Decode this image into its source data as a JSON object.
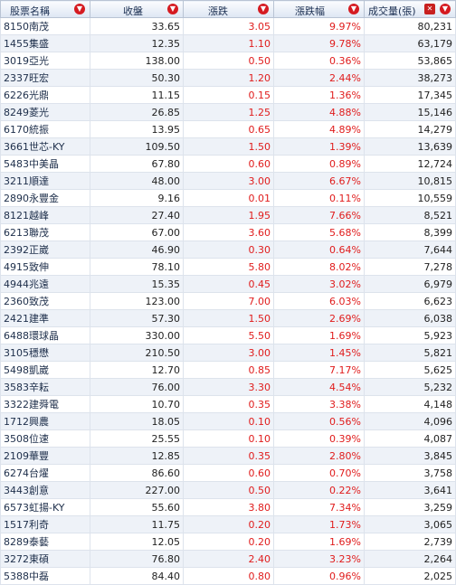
{
  "headers": [
    "股票名稱",
    "收盤",
    "漲跌",
    "漲跌幅",
    "成交量(張)"
  ],
  "icons": {
    "sort": "sort-desc-icon",
    "close": "close-icon"
  },
  "colors": {
    "up": "#e01c1c",
    "header_bg": "#dde6f3",
    "alt_row": "#eef2f8"
  },
  "rows": [
    [
      "8150南茂",
      "33.65",
      "3.05",
      "9.97%",
      "80,231"
    ],
    [
      "1455集盛",
      "12.35",
      "1.10",
      "9.78%",
      "63,179"
    ],
    [
      "3019亞光",
      "138.00",
      "0.50",
      "0.36%",
      "53,865"
    ],
    [
      "2337旺宏",
      "50.30",
      "1.20",
      "2.44%",
      "38,273"
    ],
    [
      "6226光鼎",
      "11.15",
      "0.15",
      "1.36%",
      "17,345"
    ],
    [
      "8249菱光",
      "26.85",
      "1.25",
      "4.88%",
      "15,146"
    ],
    [
      "6170統振",
      "13.95",
      "0.65",
      "4.89%",
      "14,279"
    ],
    [
      "3661世芯-KY",
      "109.50",
      "1.50",
      "1.39%",
      "13,639"
    ],
    [
      "5483中美晶",
      "67.80",
      "0.60",
      "0.89%",
      "12,724"
    ],
    [
      "3211順達",
      "48.00",
      "3.00",
      "6.67%",
      "10,815"
    ],
    [
      "2890永豐金",
      "9.16",
      "0.01",
      "0.11%",
      "10,559"
    ],
    [
      "8121越峰",
      "27.40",
      "1.95",
      "7.66%",
      "8,521"
    ],
    [
      "6213聯茂",
      "67.00",
      "3.60",
      "5.68%",
      "8,399"
    ],
    [
      "2392正崴",
      "46.90",
      "0.30",
      "0.64%",
      "7,644"
    ],
    [
      "4915致伸",
      "78.10",
      "5.80",
      "8.02%",
      "7,278"
    ],
    [
      "4944兆遠",
      "15.35",
      "0.45",
      "3.02%",
      "6,979"
    ],
    [
      "2360致茂",
      "123.00",
      "7.00",
      "6.03%",
      "6,623"
    ],
    [
      "2421建準",
      "57.30",
      "1.50",
      "2.69%",
      "6,038"
    ],
    [
      "6488環球晶",
      "330.00",
      "5.50",
      "1.69%",
      "5,923"
    ],
    [
      "3105穩懋",
      "210.50",
      "3.00",
      "1.45%",
      "5,821"
    ],
    [
      "5498凱崴",
      "12.70",
      "0.85",
      "7.17%",
      "5,625"
    ],
    [
      "3583辛耘",
      "76.00",
      "3.30",
      "4.54%",
      "5,232"
    ],
    [
      "3322建舜電",
      "10.70",
      "0.35",
      "3.38%",
      "4,148"
    ],
    [
      "1712興農",
      "18.05",
      "0.10",
      "0.56%",
      "4,096"
    ],
    [
      "3508位速",
      "25.55",
      "0.10",
      "0.39%",
      "4,087"
    ],
    [
      "2109華豐",
      "12.85",
      "0.35",
      "2.80%",
      "3,845"
    ],
    [
      "6274台燿",
      "86.60",
      "0.60",
      "0.70%",
      "3,758"
    ],
    [
      "3443創意",
      "227.00",
      "0.50",
      "0.22%",
      "3,641"
    ],
    [
      "6573虹揚-KY",
      "55.60",
      "3.80",
      "7.34%",
      "3,259"
    ],
    [
      "1517利奇",
      "11.75",
      "0.20",
      "1.73%",
      "3,065"
    ],
    [
      "8289泰藝",
      "12.05",
      "0.20",
      "1.69%",
      "2,739"
    ],
    [
      "3272東碩",
      "76.80",
      "2.40",
      "3.23%",
      "2,264"
    ],
    [
      "5388中磊",
      "84.40",
      "0.80",
      "0.96%",
      "2,025"
    ]
  ]
}
